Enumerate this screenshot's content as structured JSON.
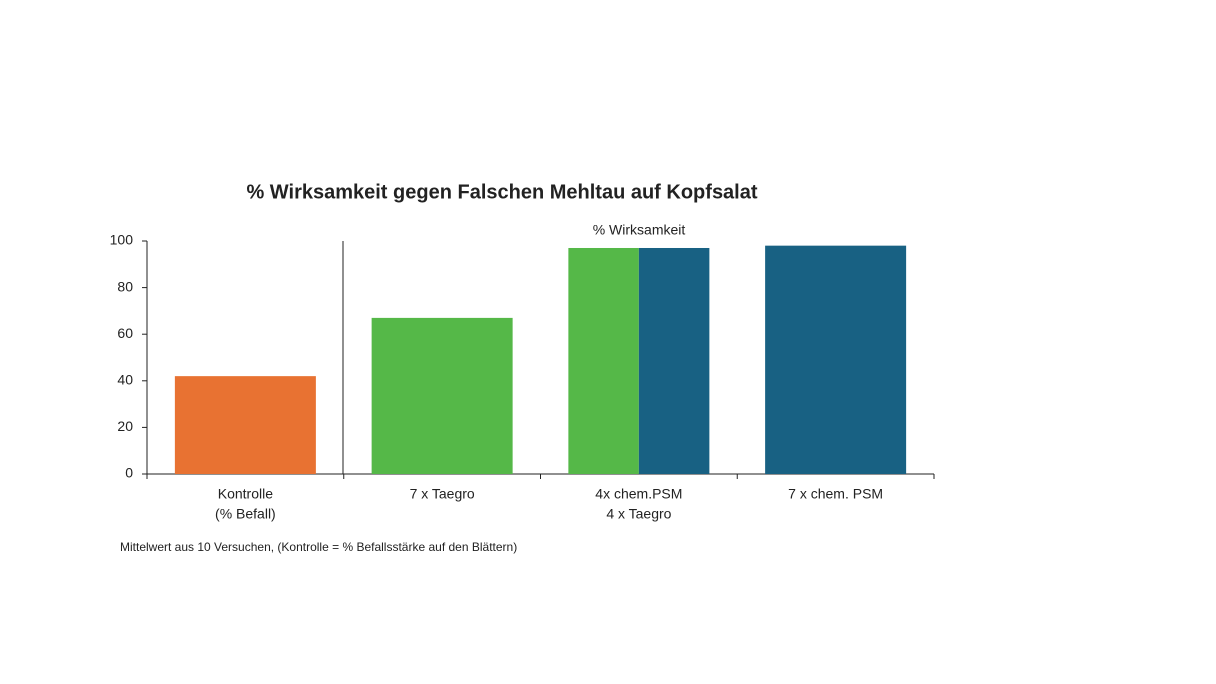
{
  "chart_data": {
    "type": "bar",
    "title": "% Wirksamkeit gegen Falschen Mehltau auf Kopfsalat",
    "annotation": "% Wirksamkeit",
    "footnote": "Mittelwert aus 10 Versuchen, (Kontrolle = % Befallsstärke auf den Blättern)",
    "categories": [
      [
        "Kontrolle",
        "(% Befall)"
      ],
      [
        "7 x Taegro"
      ],
      [
        "4x chem.PSM",
        "4 x Taegro"
      ],
      [
        "7 x chem. PSM"
      ]
    ],
    "series": [
      {
        "color": "#e87232",
        "values": [
          42,
          null,
          null,
          null
        ]
      },
      {
        "color": "#55b848",
        "values": [
          null,
          67,
          97,
          null
        ]
      },
      {
        "color": "#186183",
        "values": [
          null,
          null,
          97,
          98
        ]
      }
    ],
    "ylim": [
      0,
      100
    ],
    "yticks": [
      0,
      20,
      40,
      60,
      80,
      100
    ],
    "grid": false
  }
}
